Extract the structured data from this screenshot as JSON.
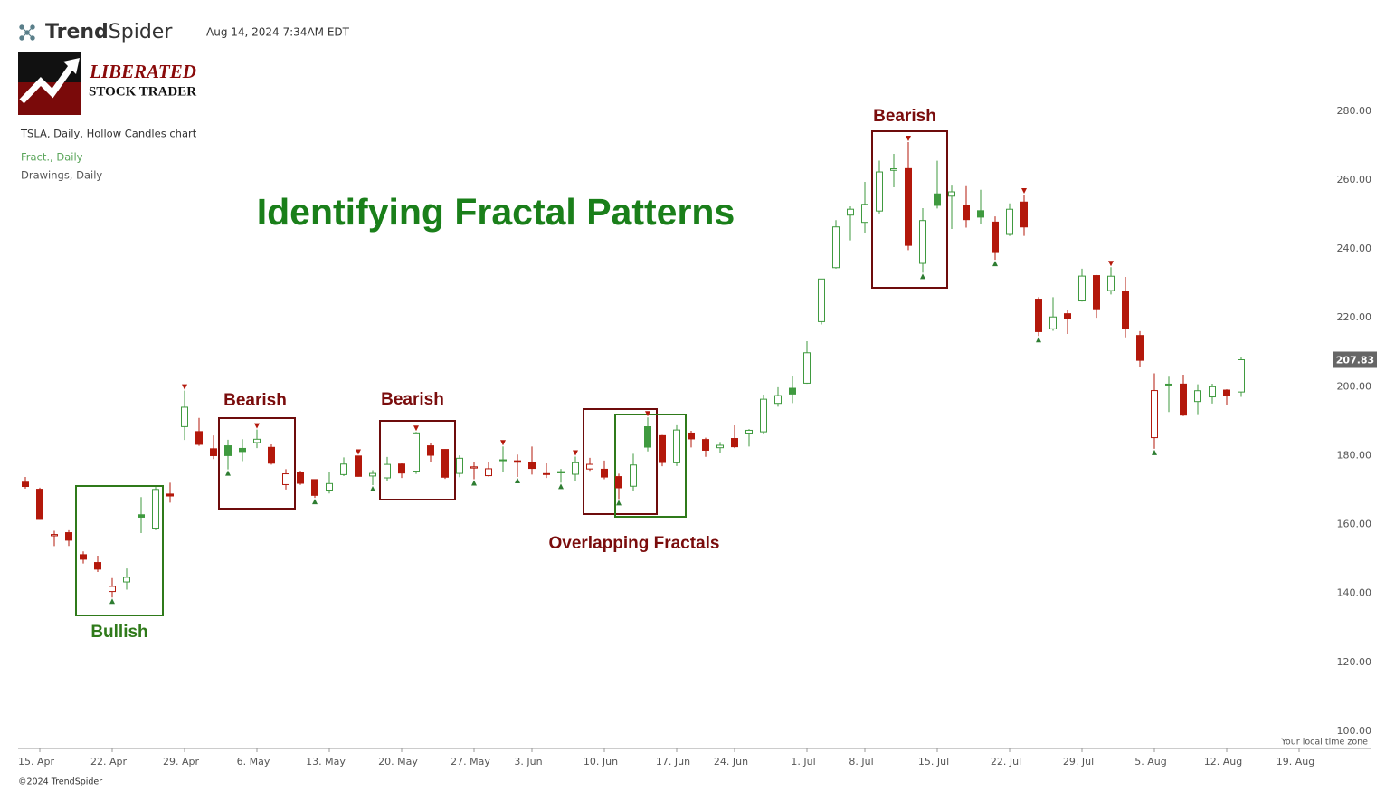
{
  "header": {
    "brand_bold": "Trend",
    "brand_light": "Spider",
    "timestamp": "Aug 14, 2024 7:34AM EDT"
  },
  "logo": {
    "line1": "LIBERATED",
    "line2": "STOCK TRADER"
  },
  "legend": [
    "TSLA, Daily, Hollow Candles chart",
    "Fract., Daily",
    "Drawings, Daily"
  ],
  "footer": {
    "timezone": "Your local time zone",
    "copyright": "©2024 TrendSpider"
  },
  "chart_data": {
    "type": "candlestick",
    "title": "Identifying Fractal Patterns",
    "annotations": [
      "Bullish",
      "Bearish",
      "Bearish",
      "Overlapping Fractals",
      "Bearish"
    ],
    "categories": [
      null,
      "15. Apr",
      null,
      null,
      null,
      null,
      "22. Apr",
      null,
      null,
      null,
      null,
      "29. Apr",
      null,
      null,
      null,
      null,
      "6. May",
      null,
      null,
      null,
      null,
      "13. May",
      null,
      null,
      null,
      null,
      "20. May",
      null,
      null,
      null,
      null,
      "27. May",
      null,
      null,
      null,
      "3. Jun",
      null,
      null,
      null,
      null,
      "10. Jun",
      null,
      null,
      null,
      null,
      "17. Jun",
      null,
      null,
      null,
      "24. Jun",
      null,
      null,
      null,
      null,
      "1. Jul",
      null,
      null,
      null,
      "8. Jul",
      null,
      null,
      null,
      null,
      "15. Jul",
      null,
      null,
      null,
      null,
      "22. Jul",
      null,
      null,
      null,
      null,
      "29. Jul",
      null,
      null,
      null,
      null,
      "5. Aug",
      null,
      null,
      null,
      null,
      "12. Aug",
      null,
      null,
      null,
      null,
      "19. Aug"
    ],
    "open": [
      172.3,
      170.24,
      156.74,
      157.64,
      151.25,
      148.97,
      140.56,
      143.33,
      162.84,
      158.96,
      168.85,
      188.42,
      186.98,
      182,
      182.86,
      182.1,
      183.8,
      182.4,
      171.59,
      175.01,
      173.05,
      170,
      174.5,
      179.9,
      174.1,
      173.55,
      177.56,
      175.51,
      182.85,
      181.8,
      174.84,
      176.4,
      174.19,
      178.58,
      178.5,
      178.13,
      174.78,
      175.35,
      174.6,
      176.13,
      176.06,
      173.92,
      171.12,
      188.39,
      185.8,
      177.92,
      186.56,
      184.68,
      182.3,
      184.97,
      186.54,
      186.92,
      195.17,
      199.55,
      201.02,
      218.89,
      234.56,
      249.81,
      247.71,
      251,
      262.8,
      263.3,
      235.8,
      255.97,
      255.31,
      252.73,
      251.09,
      247.79,
      244.21,
      253.6,
      225.42,
      216.8,
      221.19,
      224.9,
      232.25,
      227.9,
      227.69,
      214.88,
      185.22,
      200.75,
      200.77,
      195.7,
      197.05,
      199.02,
      198.47,
      null,
      null,
      null,
      null
    ],
    "high": [
      173.8,
      170.69,
      158.19,
      158.33,
      152.2,
      150.94,
      144.44,
      147.26,
      167.97,
      170.88,
      172.12,
      198.87,
      190.95,
      185.86,
      184.6,
      184.78,
      187.56,
      183.26,
      176.06,
      175.62,
      173.06,
      175.4,
      179.49,
      179.99,
      175.79,
      179.63,
      177.75,
      186.88,
      183.8,
      181.9,
      180.08,
      178.25,
      178.15,
      182.67,
      180.32,
      182.64,
      177.76,
      176.15,
      179.73,
      179.35,
      178.57,
      174.75,
      180.55,
      191.08,
      186,
      188.81,
      187.2,
      185.21,
      183.95,
      188.8,
      187.7,
      197.7,
      199.84,
      203.2,
      213.23,
      231.3,
      248.35,
      252.37,
      259.44,
      265.61,
      267.59,
      271,
      251.84,
      265.6,
      258.62,
      258.47,
      257.14,
      249.44,
      253.21,
      255.76,
      225.99,
      226,
      222.28,
      234.27,
      232.41,
      234.68,
      231.87,
      216.13,
      203.88,
      202.9,
      203.49,
      200.7,
      200.88,
      199.26,
      208.49,
      null,
      null,
      null,
      null
    ],
    "low": [
      170.4,
      161.38,
      153.75,
      153.78,
      148.7,
      146.22,
      138.8,
      141.11,
      157.51,
      158.36,
      166.37,
      184.54,
      182.84,
      179.01,
      176.02,
      178.42,
      182.2,
      177.4,
      170.15,
      171.5,
      167.75,
      169,
      174.07,
      173.87,
      171.43,
      172.75,
      173.52,
      174.71,
      178.12,
      173.26,
      173.73,
      173.16,
      173.93,
      175.38,
      173.82,
      174.49,
      173.52,
      172.13,
      172.73,
      175.58,
      173.17,
      167.41,
      169.8,
      181.23,
      176.92,
      177,
      182.37,
      179.66,
      180.69,
      182.2,
      182.65,
      186.36,
      194.2,
      195.26,
      200.85,
      218.06,
      234.25,
      242.46,
      244.57,
      250.3,
      257.86,
      239.65,
      233.09,
      251.73,
      245.8,
      246.18,
      247.2,
      236.83,
      243.75,
      243.8,
      214.71,
      216.23,
      215.33,
      224.7,
      220,
      226.79,
      214.33,
      205.78,
      182,
      192.67,
      191.48,
      192.04,
      195.11,
      194.67,
      197.06,
      null,
      null,
      null,
      null
    ],
    "close": [
      171.05,
      161.48,
      157.11,
      155.45,
      149.93,
      147.05,
      142.05,
      144.68,
      162.13,
      170.18,
      168.29,
      194.05,
      183.28,
      179.99,
      180.01,
      181.19,
      184.76,
      177.81,
      174.72,
      171.97,
      168.47,
      171.89,
      177.55,
      173.99,
      174.84,
      177.46,
      174.95,
      186.6,
      180.11,
      173.74,
      179.24,
      176.75,
      176.19,
      178.79,
      178.08,
      176.29,
      174.77,
      175,
      177.94,
      177.48,
      173.79,
      170.66,
      177.29,
      182.47,
      178.01,
      187.44,
      184.86,
      181.57,
      183.01,
      182.58,
      187.35,
      196.37,
      197.42,
      197.88,
      209.86,
      231.26,
      246.39,
      251.52,
      252.94,
      262.33,
      263.26,
      241.03,
      248.23,
      252.64,
      256.56,
      248.5,
      249.23,
      239.2,
      251.51,
      246.38,
      215.99,
      220.25,
      219.8,
      232.1,
      222.62,
      232.07,
      216.86,
      207.67,
      198.88,
      200.64,
      191.76,
      198.84,
      200,
      197.49,
      207.83,
      null,
      null,
      null,
      null
    ],
    "fractal_high": [
      false,
      false,
      false,
      false,
      false,
      false,
      false,
      false,
      false,
      false,
      false,
      true,
      false,
      false,
      false,
      false,
      true,
      false,
      false,
      false,
      false,
      false,
      false,
      true,
      false,
      false,
      false,
      true,
      false,
      false,
      false,
      false,
      false,
      true,
      false,
      false,
      false,
      false,
      true,
      false,
      false,
      false,
      false,
      true,
      false,
      false,
      false,
      false,
      false,
      false,
      false,
      false,
      false,
      false,
      false,
      false,
      false,
      false,
      false,
      false,
      false,
      true,
      false,
      false,
      false,
      false,
      false,
      false,
      false,
      true,
      false,
      false,
      false,
      false,
      false,
      true,
      false,
      false,
      false,
      false,
      false,
      false,
      false,
      false,
      false,
      false,
      false,
      false,
      false
    ],
    "fractal_low": [
      false,
      false,
      false,
      false,
      false,
      false,
      true,
      false,
      false,
      false,
      false,
      false,
      false,
      false,
      true,
      false,
      false,
      false,
      false,
      false,
      true,
      false,
      false,
      false,
      true,
      false,
      false,
      false,
      false,
      false,
      false,
      true,
      false,
      false,
      true,
      false,
      false,
      true,
      false,
      false,
      false,
      true,
      false,
      false,
      false,
      false,
      false,
      false,
      false,
      false,
      false,
      false,
      false,
      false,
      false,
      false,
      false,
      false,
      false,
      false,
      false,
      false,
      true,
      false,
      false,
      false,
      false,
      true,
      false,
      false,
      true,
      false,
      false,
      false,
      false,
      false,
      false,
      false,
      true,
      false,
      false,
      false,
      false,
      false,
      false,
      false,
      false,
      false,
      false
    ],
    "up_color": "#3f9a3f",
    "down_color": "#b3180b",
    "fractal_high_color": "#b3180b",
    "fractal_low_color": "#2e7d32",
    "ylim": [
      95,
      307
    ],
    "yticks": [
      {
        "value": 100,
        "label": "100.00"
      },
      {
        "value": 120,
        "label": "120.00"
      },
      {
        "value": 140,
        "label": "140.00"
      },
      {
        "value": 160,
        "label": "160.00"
      },
      {
        "value": 180,
        "label": "180.00"
      },
      {
        "value": 200,
        "label": "200.00"
      },
      {
        "value": 220,
        "label": "220.00"
      },
      {
        "value": 240,
        "label": "240.00"
      },
      {
        "value": 260,
        "label": "260.00"
      },
      {
        "value": 280,
        "label": "280.00"
      }
    ],
    "grid": false
  }
}
